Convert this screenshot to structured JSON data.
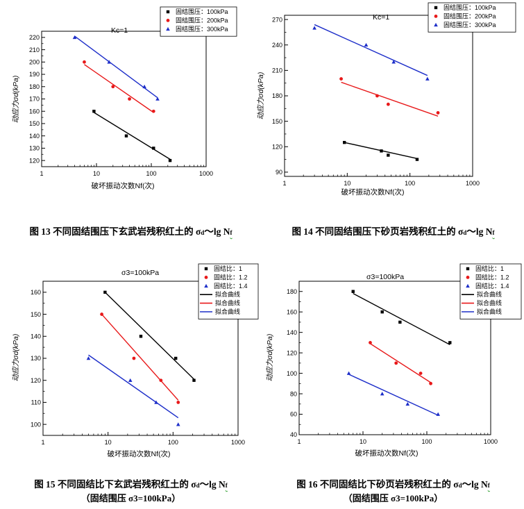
{
  "chart_data": [
    {
      "type": "scatter",
      "title": "",
      "annotation": "Kc=1",
      "xlabel": "破坏振动次数Nf(次)",
      "ylabel": "动应力σd(kPa)",
      "xscale": "log",
      "xlim": [
        1,
        1000
      ],
      "ylim": [
        115,
        225
      ],
      "xticks": [
        1,
        10,
        100,
        1000
      ],
      "yticks": [
        120,
        130,
        140,
        150,
        160,
        170,
        180,
        190,
        200,
        210,
        220
      ],
      "legend_position": "top-right",
      "series": [
        {
          "name": "固结围压：100kPa",
          "color": "#000000",
          "marker": "square",
          "x": [
            9,
            35,
            110,
            220
          ],
          "y": [
            160,
            140,
            130,
            120
          ],
          "fit_x": [
            9,
            220
          ],
          "fit_y": [
            159,
            121
          ]
        },
        {
          "name": "固结围压：200kPa",
          "color": "#e8191a",
          "marker": "circle",
          "x": [
            6,
            20,
            40,
            110
          ],
          "y": [
            200,
            180,
            170,
            160
          ],
          "fit_x": [
            6,
            110
          ],
          "fit_y": [
            198,
            159
          ]
        },
        {
          "name": "固结围压：300kPa",
          "color": "#1d2ec9",
          "marker": "triangle",
          "x": [
            4,
            17,
            75,
            130
          ],
          "y": [
            220,
            200,
            180,
            170
          ],
          "fit_x": [
            4,
            130
          ],
          "fit_y": [
            221,
            171
          ]
        }
      ]
    },
    {
      "type": "scatter",
      "title": "",
      "annotation": "Kc=1",
      "xlabel": "破坏振动次数Nf(次)",
      "ylabel": "动应力σd(kPa)",
      "xscale": "log",
      "xlim": [
        1,
        1000
      ],
      "ylim": [
        85,
        275
      ],
      "xticks": [
        1,
        10,
        100,
        1000
      ],
      "yticks": [
        90,
        120,
        150,
        180,
        210,
        240,
        270
      ],
      "legend_position": "top-right",
      "series": [
        {
          "name": "固结围压：100kPa",
          "color": "#000000",
          "marker": "square",
          "x": [
            9,
            35,
            45,
            130
          ],
          "y": [
            125,
            115,
            110,
            105
          ],
          "fit_x": [
            9,
            130
          ],
          "fit_y": [
            125,
            106
          ]
        },
        {
          "name": "固结围压：200kPa",
          "color": "#e8191a",
          "marker": "circle",
          "x": [
            8,
            30,
            45,
            280
          ],
          "y": [
            200,
            180,
            170,
            160
          ],
          "fit_x": [
            8,
            280
          ],
          "fit_y": [
            196,
            156
          ]
        },
        {
          "name": "固结围压：300kPa",
          "color": "#1d2ec9",
          "marker": "triangle",
          "x": [
            3,
            20,
            55,
            190
          ],
          "y": [
            260,
            240,
            220,
            200
          ],
          "fit_x": [
            3,
            190
          ],
          "fit_y": [
            264,
            204
          ]
        }
      ]
    },
    {
      "type": "scatter",
      "title": "σ3=100kPa",
      "annotation": "",
      "xlabel": "破坏振动次数Nf(次)",
      "ylabel": "动应力σd(kPa)",
      "xscale": "log",
      "xlim": [
        1,
        1000
      ],
      "ylim": [
        95,
        165
      ],
      "xticks": [
        1,
        10,
        100,
        1000
      ],
      "yticks": [
        100,
        110,
        120,
        130,
        140,
        150,
        160
      ],
      "legend_position": "top-right",
      "series": [
        {
          "name": "固结比：1",
          "color": "#000000",
          "marker": "square",
          "x": [
            9,
            32,
            110,
            210
          ],
          "y": [
            160,
            140,
            130,
            120
          ],
          "fit_x": [
            9,
            210
          ],
          "fit_y": [
            160,
            120.5
          ]
        },
        {
          "name": "固结比：1.2",
          "color": "#e8191a",
          "marker": "circle",
          "x": [
            8,
            25,
            65,
            120
          ],
          "y": [
            150,
            130,
            120,
            110
          ],
          "fit_x": [
            8,
            120
          ],
          "fit_y": [
            150,
            111
          ]
        },
        {
          "name": "固结比：1.4",
          "color": "#1d2ec9",
          "marker": "triangle",
          "x": [
            5,
            22,
            55,
            120
          ],
          "y": [
            130,
            120,
            110,
            100
          ],
          "fit_x": [
            5,
            120
          ],
          "fit_y": [
            131.5,
            103
          ]
        }
      ],
      "fit_legend": [
        {
          "name": "拟合曲线",
          "color": "#000000"
        },
        {
          "name": "拟合曲线",
          "color": "#e8191a"
        },
        {
          "name": "拟合曲线",
          "color": "#1d2ec9"
        }
      ]
    },
    {
      "type": "scatter",
      "title": "σ3=100kPa",
      "annotation": "",
      "xlabel": "破坏振动次数Nf(次)",
      "ylabel": "动应力σd(kPa)",
      "xscale": "log",
      "xlim": [
        1,
        1000
      ],
      "ylim": [
        40,
        190
      ],
      "xticks": [
        1,
        10,
        100,
        1000
      ],
      "yticks": [
        40,
        60,
        80,
        100,
        120,
        140,
        160,
        180
      ],
      "legend_position": "top-right",
      "series": [
        {
          "name": "固结比：1",
          "color": "#000000",
          "marker": "square",
          "x": [
            7,
            20,
            38,
            230
          ],
          "y": [
            180,
            160,
            150,
            130
          ],
          "fit_x": [
            7,
            230
          ],
          "fit_y": [
            178,
            128
          ]
        },
        {
          "name": "固结比：1.2",
          "color": "#e8191a",
          "marker": "circle",
          "x": [
            13,
            33,
            80,
            115
          ],
          "y": [
            130,
            110,
            100,
            90
          ],
          "fit_x": [
            13,
            115
          ],
          "fit_y": [
            129,
            91
          ]
        },
        {
          "name": "固结比：1.4",
          "color": "#1d2ec9",
          "marker": "triangle",
          "x": [
            6,
            20,
            50,
            150
          ],
          "y": [
            100,
            80,
            70,
            60
          ],
          "fit_x": [
            6,
            150
          ],
          "fit_y": [
            99,
            59
          ]
        }
      ],
      "fit_legend": [
        {
          "name": "拟合曲线",
          "color": "#000000"
        },
        {
          "name": "拟合曲线",
          "color": "#e8191a"
        },
        {
          "name": "拟合曲线",
          "color": "#1d2ec9"
        }
      ]
    }
  ],
  "captions": [
    {
      "prefix": "图 13 不同固结围压下玄武岩残积红土的 σ",
      "sub": "d",
      "mid": "～lg N",
      "sub2": "f",
      "note": ""
    },
    {
      "prefix": "图 14 不同固结围压下砂页岩残积红土的 σ",
      "sub": "d",
      "mid": "～lg N",
      "sub2": "f",
      "note": ""
    },
    {
      "prefix": "图 15 不同固结比下玄武岩残积红土的 σ",
      "sub": "d",
      "mid": "～lg N",
      "sub2": "f",
      "note": "（固结围压 σ3=100kPa）"
    },
    {
      "prefix": "图 16 不同固结比下砂页岩残积红土的 σ",
      "sub": "d",
      "mid": "～lg N",
      "sub2": "f",
      "note": "（固结围压 σ3=100kPa）"
    }
  ]
}
